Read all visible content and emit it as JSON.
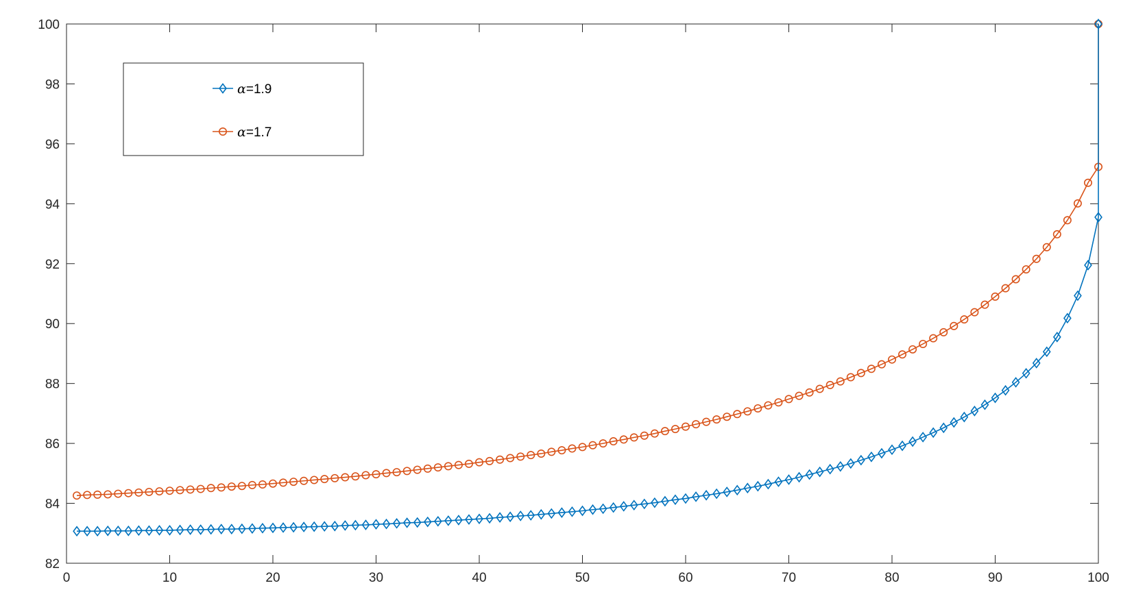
{
  "chart_data": {
    "type": "line",
    "title": "",
    "xlabel": "",
    "ylabel": "",
    "xlim": [
      0,
      100
    ],
    "ylim": [
      82,
      100
    ],
    "xticks": [
      0,
      10,
      20,
      30,
      40,
      50,
      60,
      70,
      80,
      90,
      100
    ],
    "yticks": [
      82,
      84,
      86,
      88,
      90,
      92,
      94,
      96,
      98,
      100
    ],
    "xtick_labels": [
      "0",
      "10",
      "20",
      "30",
      "40",
      "50",
      "60",
      "70",
      "80",
      "90",
      "100"
    ],
    "ytick_labels": [
      "82",
      "84",
      "86",
      "88",
      "90",
      "92",
      "94",
      "96",
      "98",
      "100"
    ],
    "grid": false,
    "legend_position": "top-left",
    "x": [
      1,
      2,
      3,
      4,
      5,
      6,
      7,
      8,
      9,
      10,
      11,
      12,
      13,
      14,
      15,
      16,
      17,
      18,
      19,
      20,
      21,
      22,
      23,
      24,
      25,
      26,
      27,
      28,
      29,
      30,
      31,
      32,
      33,
      34,
      35,
      36,
      37,
      38,
      39,
      40,
      41,
      42,
      43,
      44,
      45,
      46,
      47,
      48,
      49,
      50,
      51,
      52,
      53,
      54,
      55,
      56,
      57,
      58,
      59,
      60,
      61,
      62,
      63,
      64,
      65,
      66,
      67,
      68,
      69,
      70,
      71,
      72,
      73,
      74,
      75,
      76,
      77,
      78,
      79,
      80,
      81,
      82,
      83,
      84,
      85,
      86,
      87,
      88,
      89,
      90,
      91,
      92,
      93,
      94,
      95,
      96,
      97,
      98,
      99,
      100
    ],
    "series": [
      {
        "name": "α=1.9",
        "legend_symbol": "α",
        "legend_value": "=1.9",
        "color": "#0072BD",
        "marker": "diamond",
        "values": [
          83.07,
          83.07,
          83.07,
          83.08,
          83.08,
          83.08,
          83.09,
          83.09,
          83.1,
          83.1,
          83.11,
          83.12,
          83.12,
          83.13,
          83.14,
          83.14,
          83.15,
          83.16,
          83.17,
          83.18,
          83.19,
          83.2,
          83.21,
          83.22,
          83.23,
          83.24,
          83.26,
          83.27,
          83.28,
          83.3,
          83.31,
          83.33,
          83.35,
          83.36,
          83.38,
          83.4,
          83.42,
          83.44,
          83.46,
          83.48,
          83.5,
          83.53,
          83.55,
          83.58,
          83.6,
          83.63,
          83.66,
          83.69,
          83.72,
          83.75,
          83.79,
          83.82,
          83.86,
          83.9,
          83.94,
          83.98,
          84.02,
          84.07,
          84.12,
          84.16,
          84.22,
          84.27,
          84.32,
          84.38,
          84.44,
          84.51,
          84.57,
          84.64,
          84.72,
          84.79,
          84.87,
          84.96,
          85.05,
          85.14,
          85.23,
          85.33,
          85.44,
          85.55,
          85.67,
          85.79,
          85.92,
          86.06,
          86.21,
          86.36,
          86.52,
          86.7,
          86.88,
          87.08,
          87.29,
          87.52,
          87.77,
          88.04,
          88.34,
          88.68,
          89.06,
          89.55,
          90.18,
          90.93,
          91.95,
          93.55
        ]
      },
      {
        "name": "α=1.7",
        "legend_symbol": "α",
        "legend_value": "=1.7",
        "color": "#D95319",
        "marker": "circle",
        "values": [
          84.26,
          84.28,
          84.29,
          84.3,
          84.32,
          84.34,
          84.36,
          84.38,
          84.4,
          84.42,
          84.44,
          84.46,
          84.48,
          84.51,
          84.53,
          84.56,
          84.58,
          84.61,
          84.63,
          84.66,
          84.69,
          84.72,
          84.75,
          84.78,
          84.81,
          84.84,
          84.87,
          84.9,
          84.94,
          84.97,
          85.01,
          85.04,
          85.08,
          85.12,
          85.16,
          85.2,
          85.24,
          85.28,
          85.32,
          85.37,
          85.41,
          85.46,
          85.51,
          85.56,
          85.61,
          85.66,
          85.72,
          85.77,
          85.83,
          85.88,
          85.94,
          86.0,
          86.07,
          86.13,
          86.2,
          86.26,
          86.33,
          86.41,
          86.48,
          86.56,
          86.64,
          86.72,
          86.8,
          86.89,
          86.98,
          87.07,
          87.17,
          87.27,
          87.37,
          87.48,
          87.59,
          87.7,
          87.82,
          87.95,
          88.07,
          88.21,
          88.35,
          88.49,
          88.64,
          88.8,
          88.97,
          89.14,
          89.32,
          89.51,
          89.71,
          89.92,
          90.14,
          90.38,
          90.63,
          90.9,
          91.18,
          91.48,
          91.81,
          92.16,
          92.55,
          92.98,
          93.45,
          94.01,
          94.7,
          95.23
        ]
      }
    ],
    "endpoint": {
      "x": 100,
      "y": 100
    }
  }
}
